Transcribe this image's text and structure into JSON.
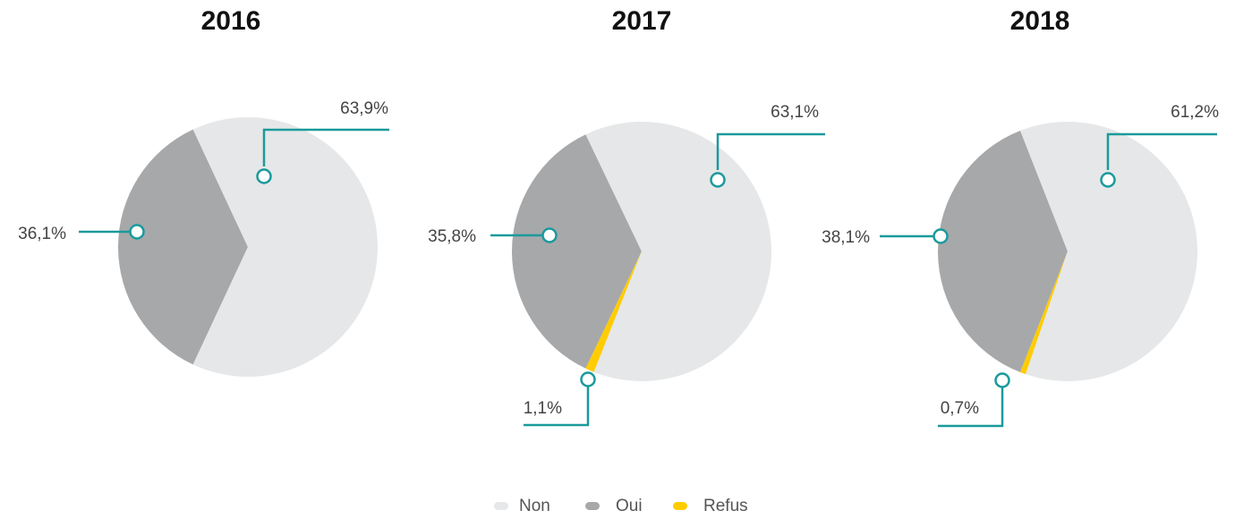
{
  "chart_data": [
    {
      "type": "pie",
      "title": "2016",
      "values": [
        63.9,
        36.1
      ],
      "value_labels": [
        "63,9%",
        "36,1%"
      ]
    },
    {
      "type": "pie",
      "title": "2017",
      "values": [
        63.1,
        35.8,
        1.1
      ],
      "value_labels": [
        "63,1%",
        "35,8%",
        "1,1%"
      ]
    },
    {
      "type": "pie",
      "title": "2018",
      "values": [
        61.2,
        38.1,
        0.7
      ],
      "value_labels": [
        "61,2%",
        "38,1%",
        "0,7%"
      ]
    }
  ],
  "legend": {
    "names": [
      "Non",
      "Oui",
      "Refus"
    ],
    "colors": [
      "#e6e7e8",
      "#a7a8aa",
      "#ffcc00"
    ]
  },
  "callout_color": "#1a9a9c"
}
